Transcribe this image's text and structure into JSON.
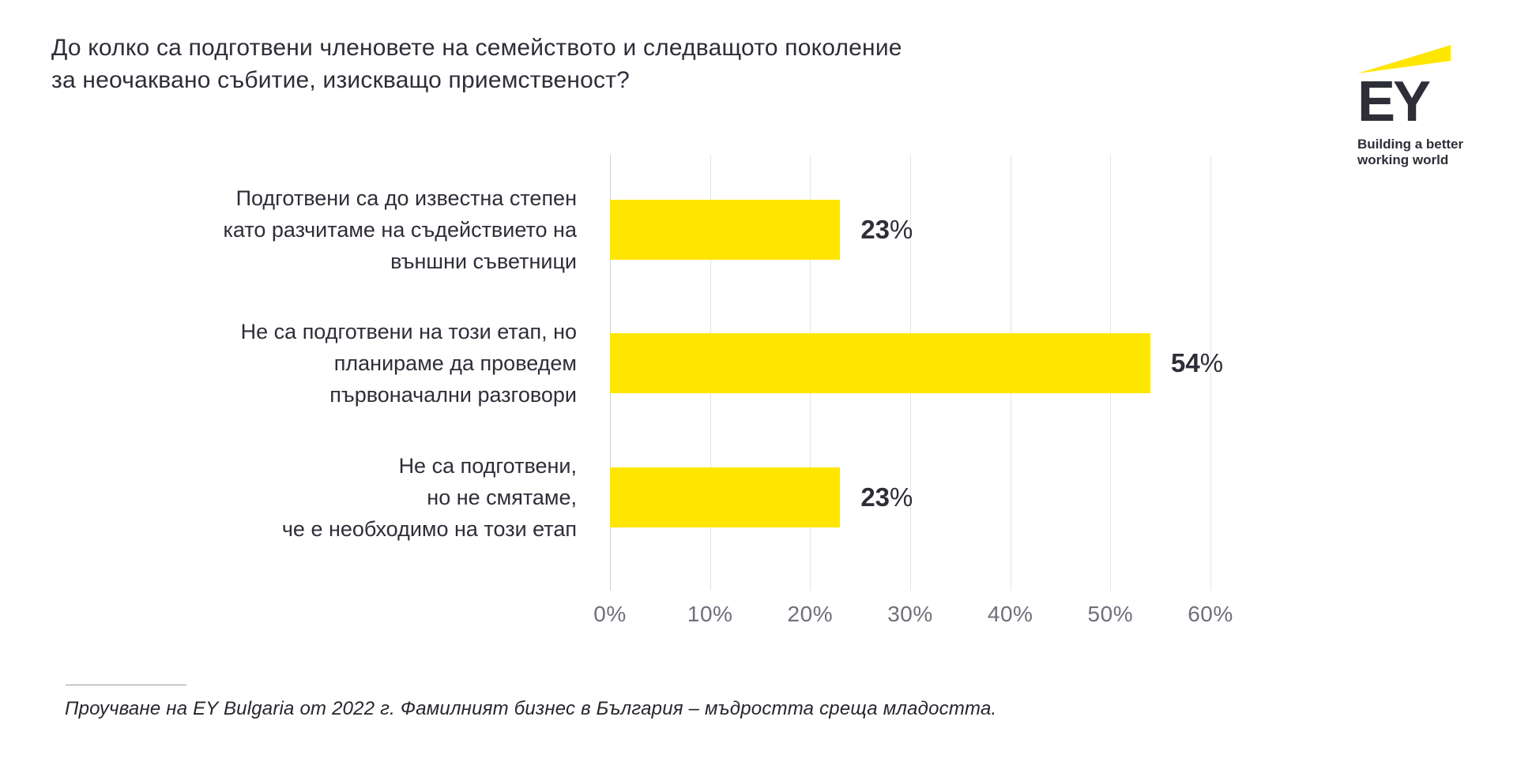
{
  "title": {
    "line1": "До колко са подготвени членовете на семейството и следващото поколение",
    "line2": "за неочаквано събитие, изискващо приемственост?"
  },
  "logo": {
    "name": "EY",
    "tagline_line1": "Building a better",
    "tagline_line2": "working world"
  },
  "footer": {
    "source": "Проучване на EY Bulgaria от 2022 г. Фамилният бизнес в България – мъдростта среща младостта."
  },
  "colors": {
    "bar": "#FFE600",
    "text_dark": "#2E2E38",
    "axis_label": "#6F6F7B",
    "gridline": "#E4E4E9",
    "background": "#FFFFFF"
  },
  "chart_data": {
    "type": "bar",
    "orientation": "horizontal",
    "title": "До колко са подготвени членовете на семейството и следващото поколение за неочаквано събитие, изискващо приемственост?",
    "categories": [
      [
        "Подготвени са до известна степен",
        "като разчитаме на съдействието на",
        "външни съветници"
      ],
      [
        "Не са подготвени на този етап, но",
        "планираме да проведем",
        "първоначални разговори"
      ],
      [
        "Не са подготвени,",
        "но не смятаме,",
        "че е необходимо на този етап"
      ]
    ],
    "values": [
      23,
      54,
      23
    ],
    "value_labels": [
      "23%",
      "54%",
      "23%"
    ],
    "xlabel": "",
    "ylabel": "",
    "xlim": [
      0,
      60
    ],
    "x_tick_values": [
      0,
      10,
      20,
      30,
      40,
      50,
      60
    ],
    "x_ticks": [
      "0%",
      "10%",
      "20%",
      "30%",
      "40%",
      "50%",
      "60%"
    ],
    "grid": "vertical",
    "legend": "none",
    "source_note": "Проучване на EY Bulgaria от 2022 г. Фамилният бизнес в България – мъдростта среща младостта."
  }
}
